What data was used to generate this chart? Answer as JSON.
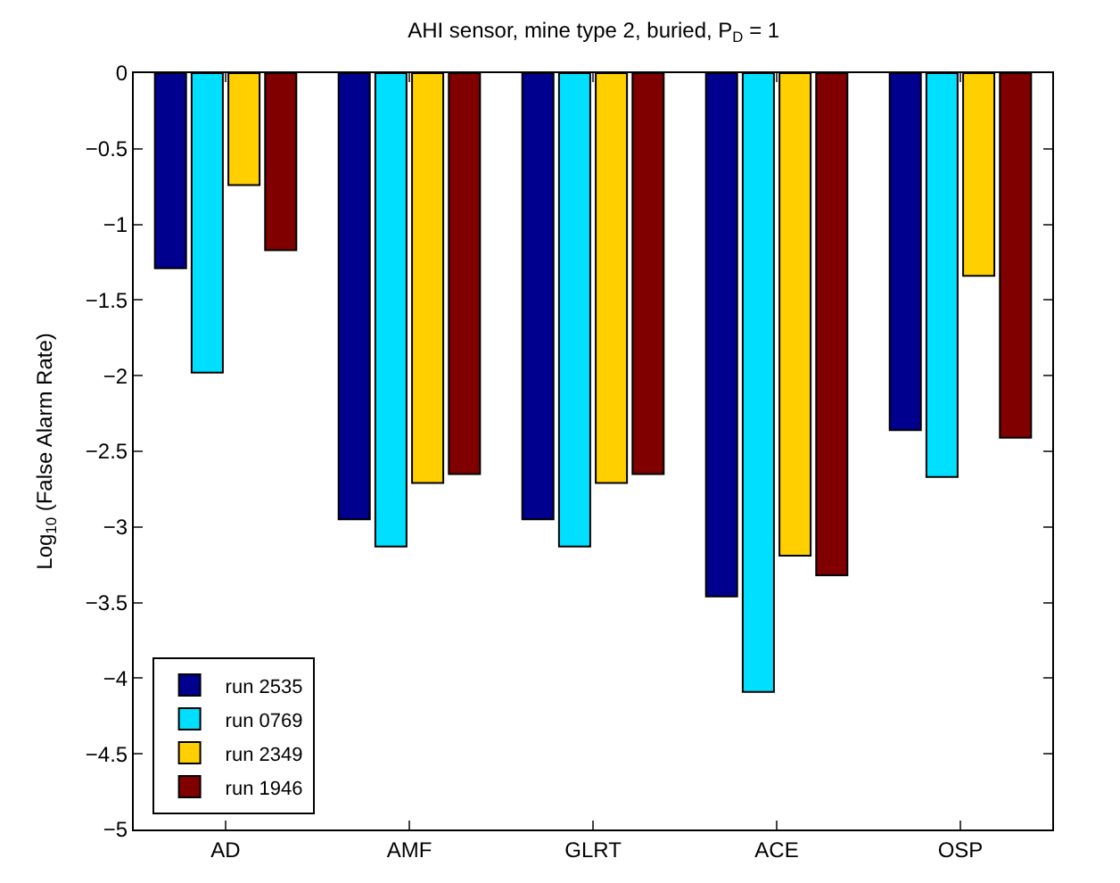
{
  "chart_data": {
    "type": "bar",
    "title": "AHI sensor, mine type 2, buried, P$_{D}$ = 1",
    "ylabel": "Log$_{10}$ (False Alarm Rate)",
    "categories": [
      "AD",
      "AMF",
      "GLRT",
      "ACE",
      "OSP"
    ],
    "series": [
      {
        "name": "run 2535",
        "color": "#00008f",
        "values": [
          -1.29,
          -2.95,
          -2.95,
          -3.46,
          -2.36
        ]
      },
      {
        "name": "run 0769",
        "color": "#00dfff",
        "values": [
          -1.98,
          -3.13,
          -3.13,
          -4.09,
          -2.67
        ]
      },
      {
        "name": "run 2349",
        "color": "#ffcf00",
        "values": [
          -0.74,
          -2.71,
          -2.71,
          -3.19,
          -1.34
        ]
      },
      {
        "name": "run 1946",
        "color": "#800000",
        "values": [
          -1.17,
          -2.65,
          -2.65,
          -3.32,
          -2.41
        ]
      }
    ],
    "ylim": [
      -5,
      0
    ],
    "yticks": [
      -5,
      -4.5,
      -4,
      -3.5,
      -3,
      -2.5,
      -2,
      -1.5,
      -1,
      -0.5,
      0
    ],
    "legend": "bottom left"
  }
}
